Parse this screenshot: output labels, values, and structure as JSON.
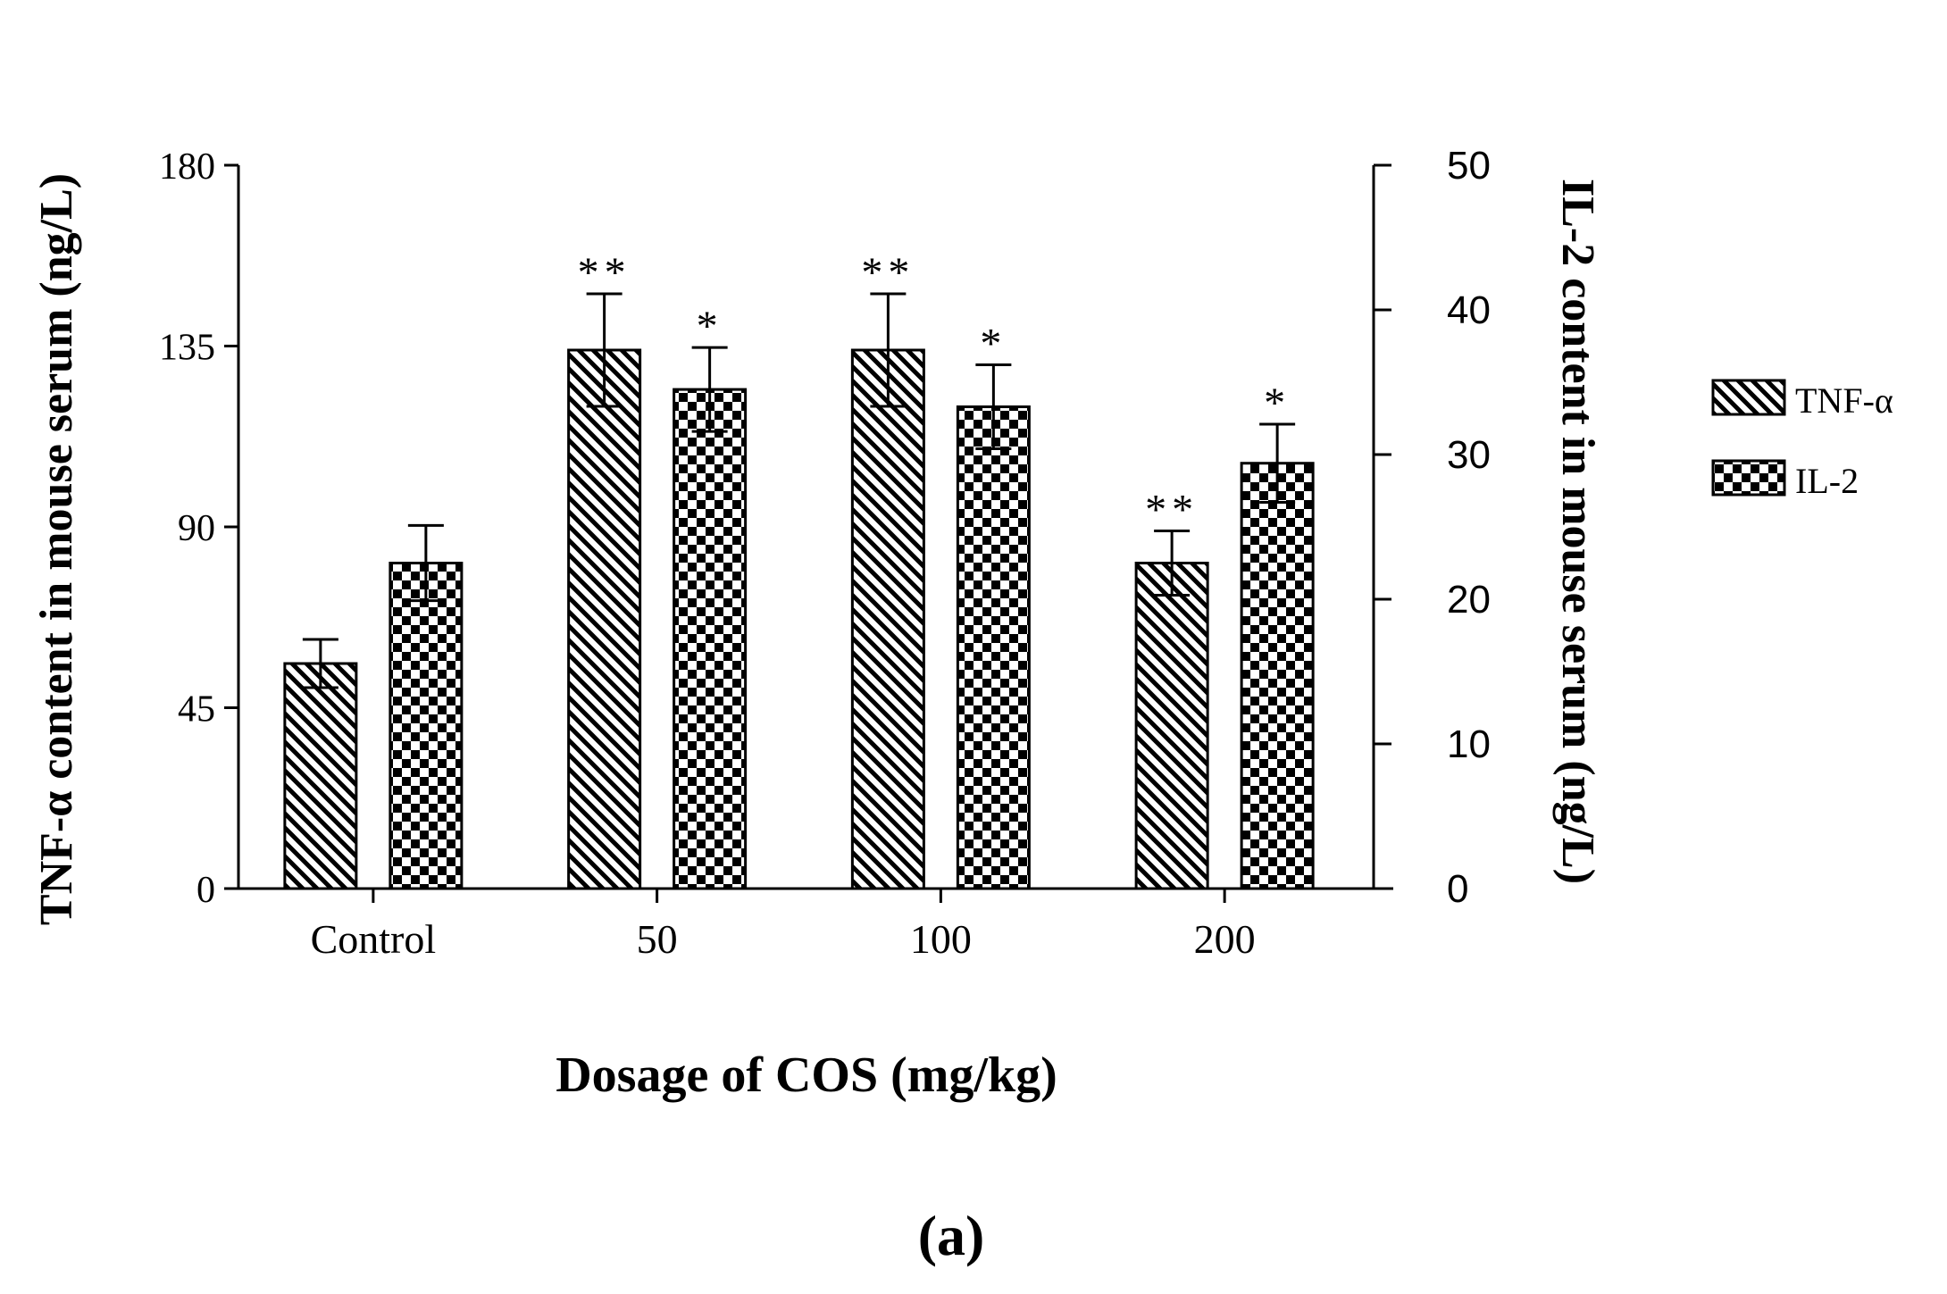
{
  "chart_data": {
    "type": "bar",
    "categories": [
      "Control",
      "50",
      "100",
      "200"
    ],
    "xlabel": "Dosage of COS (mg/kg)",
    "ylabel_left": "TNF-α content in mouse serum (ng/L)",
    "ylabel_right": "IL-2 content in mouse serum (ng/L)",
    "ylim_left": [
      0,
      180
    ],
    "yticks_left": [
      0,
      45,
      90,
      135,
      180
    ],
    "ylim_right": [
      0,
      50
    ],
    "yticks_right": [
      0,
      10,
      20,
      30,
      40,
      50
    ],
    "grid": false,
    "legend_position": "right",
    "caption": "(a)",
    "series": [
      {
        "name": "TNF-α",
        "axis": "left",
        "pattern": "diagonal-hatch",
        "values": [
          56,
          134,
          134,
          81
        ],
        "errors": [
          6,
          14,
          14,
          8
        ],
        "significance": [
          "",
          "**",
          "**",
          "**"
        ]
      },
      {
        "name": "IL-2",
        "axis": "right",
        "pattern": "checkerboard",
        "values": [
          22.5,
          34.5,
          33.3,
          29.4
        ],
        "errors": [
          2.6,
          2.9,
          2.9,
          2.7
        ],
        "significance": [
          "",
          "*",
          "*",
          "*"
        ]
      }
    ],
    "colors": {
      "ink": "#000000",
      "fill": "#ffffff"
    }
  }
}
